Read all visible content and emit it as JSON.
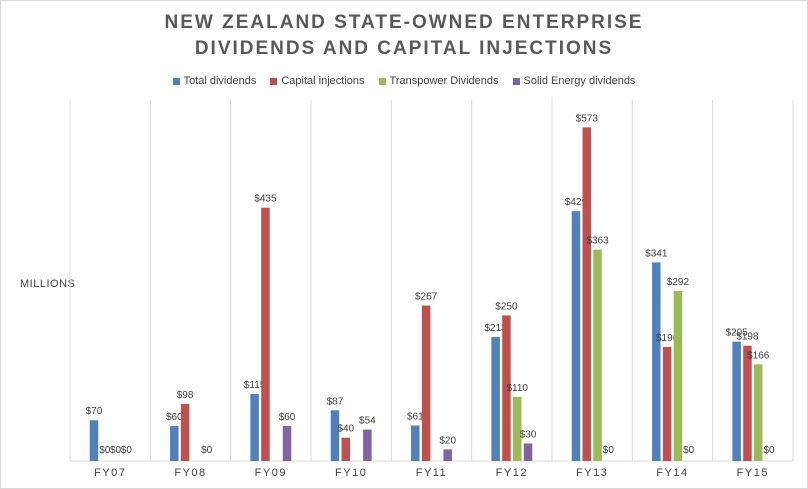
{
  "chart_data": {
    "type": "bar",
    "title_line1": "NEW ZEALAND STATE-OWNED ENTERPRISE",
    "title_line2": "DIVIDENDS AND CAPITAL INJECTIONS",
    "ylabel": "MILLIONS",
    "xlabel": "",
    "ylim": [
      0,
      620
    ],
    "grid": "vertical category separators",
    "legend_position": "top",
    "categories": [
      "FY07",
      "FY08",
      "FY09",
      "FY10",
      "FY11",
      "FY12",
      "FY13",
      "FY14",
      "FY15"
    ],
    "series": [
      {
        "name": "Total dividends",
        "color": "#4f81bd",
        "values": [
          70,
          60,
          115,
          87,
          61,
          213,
          429,
          341,
          205
        ],
        "labels": [
          "$70",
          "$60",
          "$115",
          "$87",
          "$61",
          "$213",
          "$429",
          "$341",
          "$205"
        ]
      },
      {
        "name": "Capital injections",
        "color": "#c0504d",
        "values": [
          0,
          98,
          435,
          40,
          267,
          250,
          573,
          196,
          198
        ],
        "labels": [
          "$0",
          "$98",
          "$435",
          "$40",
          "$267",
          "$250",
          "$573",
          "$196",
          "$198"
        ]
      },
      {
        "name": "Transpower Dividends",
        "color": "#9bbb59",
        "values": [
          0,
          null,
          null,
          null,
          null,
          110,
          363,
          292,
          166
        ],
        "labels": [
          "$0",
          "",
          "",
          "",
          "",
          "$110",
          "$363",
          "$292",
          "$166"
        ]
      },
      {
        "name": "Solid Energy dividends",
        "color": "#8064a2",
        "values": [
          0,
          0,
          60,
          54,
          20,
          30,
          0,
          0,
          0
        ],
        "labels": [
          "$0",
          "$0",
          "$60",
          "$54",
          "$20",
          "$30",
          "$0",
          "$0",
          "$0"
        ]
      }
    ]
  }
}
